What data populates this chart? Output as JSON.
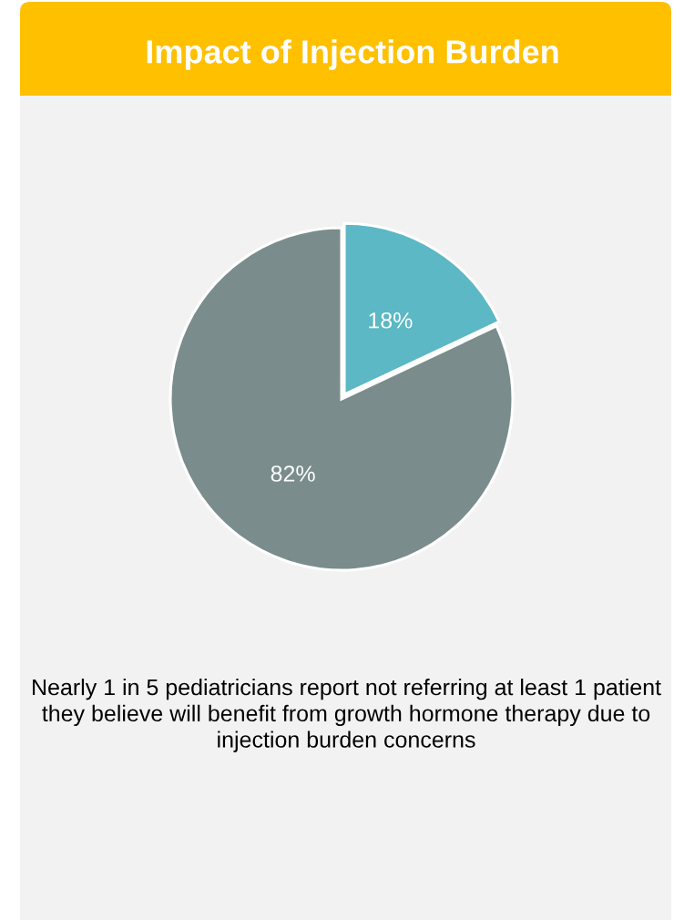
{
  "chart_data": {
    "type": "pie",
    "title": "Impact of Injection Burden",
    "categories": [
      null,
      null
    ],
    "values": [
      18,
      82
    ],
    "colors": [
      "#5bb8c4",
      "#7a8c8c"
    ],
    "value_labels": [
      "18%",
      "82%"
    ],
    "annotations": [
      "Nearly 1 in 5 pediatricians report not referring at least 1 patient they believe will benefit from growth hormone therapy due to injection burden concerns"
    ]
  }
}
